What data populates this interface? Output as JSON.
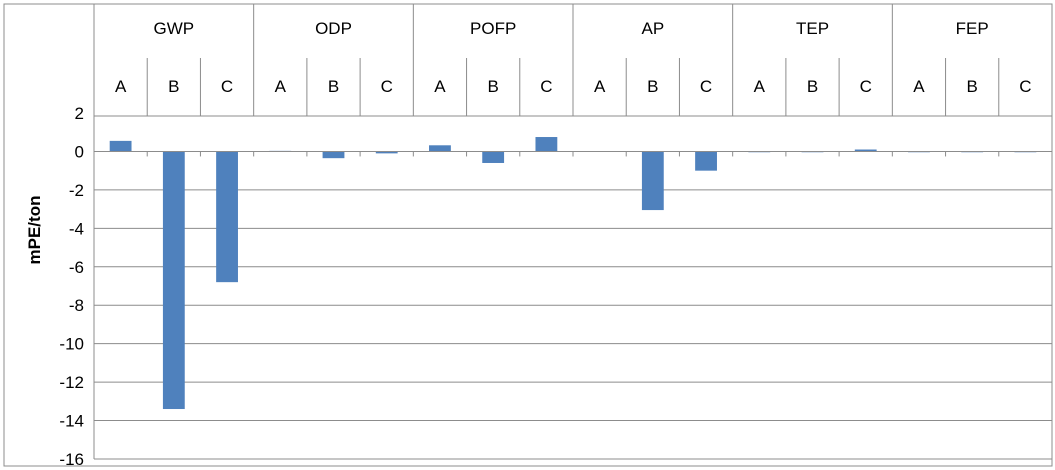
{
  "chart_data": {
    "type": "bar",
    "title": "",
    "xlabel": "",
    "ylabel": "mPE/ton",
    "ylim": [
      -16,
      2
    ],
    "yticks": [
      2,
      0,
      -2,
      -4,
      -6,
      -8,
      -10,
      -12,
      -14,
      -16
    ],
    "grid": true,
    "legend": "none",
    "bar_color": "#4f81bd",
    "groups": [
      {
        "label": "GWP",
        "categories": [
          "A",
          "B",
          "C"
        ],
        "values": [
          0.55,
          -13.4,
          -6.8
        ]
      },
      {
        "label": "ODP",
        "categories": [
          "A",
          "B",
          "C"
        ],
        "values": [
          0.03,
          -0.35,
          -0.1
        ]
      },
      {
        "label": "POFP",
        "categories": [
          "A",
          "B",
          "C"
        ],
        "values": [
          0.32,
          -0.6,
          0.75
        ]
      },
      {
        "label": "AP",
        "categories": [
          "A",
          "B",
          "C"
        ],
        "values": [
          0.02,
          -3.05,
          -1.0
        ]
      },
      {
        "label": "TEP",
        "categories": [
          "A",
          "B",
          "C"
        ],
        "values": [
          0.0,
          -0.04,
          0.1
        ]
      },
      {
        "label": "FEP",
        "categories": [
          "A",
          "B",
          "C"
        ],
        "values": [
          0.0,
          0.0,
          0.0
        ]
      }
    ]
  }
}
